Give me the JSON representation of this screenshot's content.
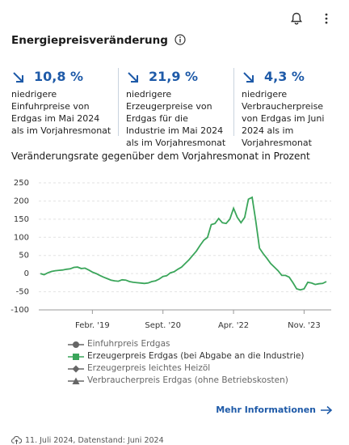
{
  "header": {
    "title": "Energiepreisveränderung"
  },
  "kpis": [
    {
      "value": "10,8 %",
      "text": "niedrigere Einfuhrpreise von Erdgas im Mai 2024 als im Vorjahresmonat"
    },
    {
      "value": "21,9 %",
      "text": "niedrigere Erzeugerpreise von Erdgas für die Industrie im Mai 2024 als im Vorjahresmonat"
    },
    {
      "value": "4,3 %",
      "text": "niedrigere Verbraucherpreise von Erdgas im Juni 2024 als im Vorjahresmonat"
    }
  ],
  "chart_data": {
    "type": "line",
    "title": "Veränderungsrate gegenüber dem Vorjahresmonat in Prozent",
    "categories": [
      null,
      null,
      null,
      null,
      null,
      null,
      null,
      null,
      null,
      null,
      null,
      null,
      null,
      null,
      "Febr. '19",
      null,
      null,
      null,
      null,
      null,
      null,
      null,
      null,
      null,
      null,
      null,
      null,
      null,
      null,
      null,
      null,
      null,
      null,
      "Sept. '20",
      null,
      null,
      null,
      null,
      null,
      null,
      null,
      null,
      null,
      null,
      null,
      null,
      null,
      null,
      null,
      null,
      null,
      null,
      "Apr. '22",
      null,
      null,
      null,
      null,
      null,
      null,
      null,
      null,
      null,
      null,
      null,
      null,
      null,
      null,
      null,
      null,
      null,
      null,
      "Nov. '23",
      null,
      null,
      null,
      null,
      null,
      null
    ],
    "series": [
      {
        "name": "Einfuhrpreis Erdgas",
        "color": "#666666",
        "marker": "circle",
        "visible": false
      },
      {
        "name": "Erzeugerpreis Erdgas (bei Abgabe an die Industrie)",
        "color": "#3aa55a",
        "marker": "square",
        "visible": true,
        "values": [
          0,
          -3,
          2,
          6,
          8,
          9,
          10,
          12,
          13,
          17,
          18,
          14,
          15,
          10,
          4,
          0,
          -5,
          -10,
          -14,
          -18,
          -20,
          -21,
          -17,
          -18,
          -22,
          -24,
          -25,
          -26,
          -27,
          -26,
          -22,
          -20,
          -15,
          -8,
          -6,
          2,
          5,
          12,
          18,
          28,
          38,
          50,
          62,
          78,
          92,
          100,
          135,
          138,
          152,
          140,
          138,
          150,
          180,
          155,
          140,
          155,
          205,
          210,
          145,
          70,
          55,
          42,
          28,
          18,
          8,
          -5,
          -5,
          -10,
          -25,
          -42,
          -45,
          -42,
          -24,
          -26,
          -30,
          -28,
          -27,
          -22
        ]
      },
      {
        "name": "Erzeugerpreis leichtes Heizöl",
        "color": "#666666",
        "marker": "diamond",
        "visible": false
      },
      {
        "name": "Verbraucherpreis Erdgas (ohne Betriebskosten)",
        "color": "#666666",
        "marker": "triangle",
        "visible": false
      }
    ],
    "ylim": [
      -100,
      250
    ],
    "yticks": [
      -100,
      -50,
      0,
      50,
      100,
      150,
      200,
      250
    ],
    "grid": true
  },
  "footer": {
    "link": "Mehr Informationen",
    "date": "11. Juli 2024, Datenstand: Juni 2024"
  }
}
